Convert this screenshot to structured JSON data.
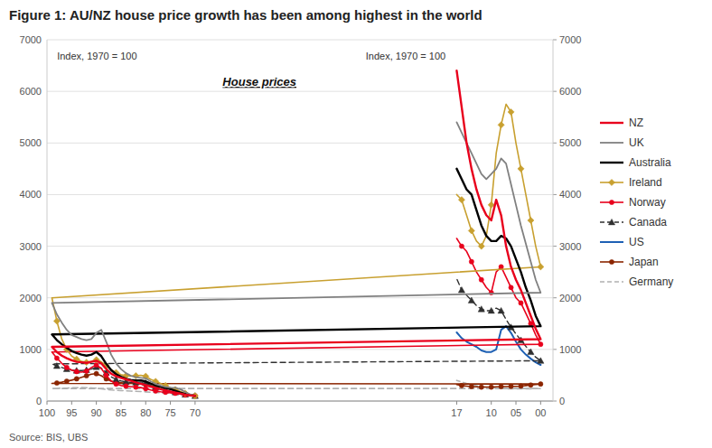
{
  "chart_data": {
    "type": "line",
    "title": "Figure 1: AU/NZ house price growth has been among highest in the world",
    "subtitle": "House prices",
    "y_label": "Index, 1970 = 100",
    "y2_label": "Index, 1970 = 100",
    "source": "Source: BIS, UBS",
    "xlim": [
      100,
      -2.5
    ],
    "xticks": [
      70,
      75,
      80,
      85,
      90,
      95,
      100,
      {
        "value": 0,
        "label": "00"
      },
      {
        "value": 5,
        "label": "05"
      },
      10,
      17
    ],
    "ylim": [
      0,
      7000
    ],
    "yticks": [
      0,
      1000,
      2000,
      3000,
      4000,
      5000,
      6000,
      7000
    ],
    "y2lim": [
      0,
      7000
    ],
    "y2ticks": [
      0,
      1000,
      2000,
      3000,
      4000,
      5000,
      6000,
      7000
    ],
    "grid": true,
    "legend": "right",
    "series": [
      {
        "name": "NZ",
        "color": "#e8001c",
        "line_style": "solid",
        "x": [
          70,
          71,
          72,
          73,
          74,
          75,
          76,
          77,
          78,
          79,
          80,
          81,
          82,
          83,
          84,
          85,
          86,
          87,
          88,
          89,
          90,
          91,
          92,
          93,
          94,
          95,
          96,
          97,
          98,
          99,
          0,
          1,
          2,
          3,
          4,
          5,
          6,
          7,
          8,
          9,
          10,
          11,
          12,
          13,
          14,
          15,
          16,
          17
        ],
        "values": [
          100,
          110,
          125,
          145,
          165,
          185,
          205,
          230,
          255,
          280,
          310,
          335,
          360,
          390,
          420,
          450,
          480,
          530,
          620,
          730,
          780,
          760,
          740,
          750,
          760,
          790,
          830,
          880,
          950,
          1050,
          1200,
          1400,
          1650,
          1900,
          2150,
          2350,
          2600,
          3000,
          3600,
          3900,
          3500,
          3600,
          3800,
          4100,
          4500,
          5000,
          5700,
          6400
        ]
      },
      {
        "name": "UK",
        "color": "#808080",
        "line_style": "solid",
        "x": [
          70,
          71,
          72,
          73,
          74,
          75,
          76,
          77,
          78,
          79,
          80,
          81,
          82,
          83,
          84,
          85,
          86,
          87,
          88,
          89,
          90,
          91,
          92,
          93,
          94,
          95,
          96,
          97,
          98,
          99,
          0,
          1,
          2,
          3,
          4,
          5,
          6,
          7,
          8,
          9,
          10,
          11,
          12,
          13,
          14,
          15,
          16,
          17
        ],
        "values": [
          100,
          130,
          175,
          230,
          255,
          260,
          275,
          300,
          330,
          380,
          440,
          450,
          460,
          490,
          540,
          620,
          730,
          900,
          1150,
          1380,
          1320,
          1200,
          1180,
          1200,
          1240,
          1280,
          1380,
          1520,
          1680,
          1900,
          2100,
          2350,
          2700,
          3050,
          3400,
          3800,
          4200,
          4600,
          4700,
          4500,
          4400,
          4300,
          4400,
          4600,
          4800,
          5000,
          5200,
          5400
        ]
      },
      {
        "name": "Australia",
        "color": "#000000",
        "line_style": "solid",
        "x": [
          70,
          71,
          72,
          73,
          74,
          75,
          76,
          77,
          78,
          79,
          80,
          81,
          82,
          83,
          84,
          85,
          86,
          87,
          88,
          89,
          90,
          91,
          92,
          93,
          94,
          95,
          96,
          97,
          98,
          99,
          0,
          1,
          2,
          3,
          4,
          5,
          6,
          7,
          8,
          9,
          10,
          11,
          12,
          13,
          14,
          15,
          16,
          17
        ],
        "values": [
          100,
          115,
          135,
          165,
          200,
          230,
          255,
          280,
          310,
          340,
          380,
          400,
          400,
          410,
          430,
          470,
          520,
          600,
          720,
          870,
          950,
          900,
          880,
          900,
          930,
          970,
          1030,
          1100,
          1180,
          1290,
          1450,
          1650,
          1950,
          2200,
          2500,
          2750,
          3000,
          3150,
          3200,
          3100,
          3100,
          3200,
          3400,
          3700,
          4000,
          4100,
          4300,
          4500
        ]
      },
      {
        "name": "Ireland",
        "color": "#c8a030",
        "line_style": "solid",
        "marker": "diamond",
        "x": [
          70,
          71,
          72,
          73,
          74,
          75,
          76,
          77,
          78,
          79,
          80,
          81,
          82,
          83,
          84,
          85,
          86,
          87,
          88,
          89,
          90,
          91,
          92,
          93,
          94,
          95,
          96,
          97,
          98,
          99,
          0,
          1,
          2,
          3,
          4,
          5,
          6,
          7,
          8,
          9,
          10,
          11,
          12,
          13,
          14,
          15,
          16,
          17
        ],
        "values": [
          100,
          120,
          150,
          185,
          220,
          260,
          300,
          340,
          380,
          420,
          480,
          500,
          490,
          480,
          490,
          510,
          550,
          610,
          680,
          760,
          800,
          770,
          750,
          770,
          810,
          870,
          1000,
          1200,
          1550,
          2000,
          2600,
          3000,
          3500,
          4000,
          4500,
          5000,
          5600,
          5750,
          5350,
          4800,
          3800,
          3200,
          3000,
          3100,
          3300,
          3600,
          3900,
          4000
        ]
      },
      {
        "name": "Norway",
        "color": "#e8001c",
        "line_style": "solid",
        "marker": "circle",
        "x": [
          70,
          71,
          72,
          73,
          74,
          75,
          76,
          77,
          78,
          79,
          80,
          81,
          82,
          83,
          84,
          85,
          86,
          87,
          88,
          89,
          90,
          91,
          92,
          93,
          94,
          95,
          96,
          97,
          98,
          99,
          0,
          1,
          2,
          3,
          4,
          5,
          6,
          7,
          8,
          9,
          10,
          11,
          12,
          13,
          14,
          15,
          16,
          17
        ],
        "values": [
          100,
          110,
          120,
          135,
          150,
          160,
          170,
          180,
          195,
          215,
          240,
          260,
          270,
          280,
          290,
          300,
          330,
          390,
          500,
          630,
          700,
          650,
          580,
          560,
          570,
          600,
          650,
          730,
          830,
          950,
          1100,
          1280,
          1500,
          1700,
          1900,
          2000,
          2200,
          2400,
          2600,
          2500,
          2100,
          2200,
          2350,
          2500,
          2700,
          2900,
          3000,
          3150
        ]
      },
      {
        "name": "Canada",
        "color": "#303030",
        "line_style": "dashed",
        "marker": "triangle",
        "x": [
          70,
          71,
          72,
          73,
          74,
          75,
          76,
          77,
          78,
          79,
          80,
          81,
          82,
          83,
          84,
          85,
          86,
          87,
          88,
          89,
          90,
          91,
          92,
          93,
          94,
          95,
          96,
          97,
          98,
          99,
          0,
          1,
          2,
          3,
          4,
          5,
          6,
          7,
          8,
          9,
          10,
          11,
          12,
          13,
          14,
          15,
          16,
          17
        ],
        "values": [
          100,
          110,
          125,
          145,
          170,
          190,
          210,
          235,
          265,
          300,
          350,
          370,
          360,
          360,
          370,
          390,
          420,
          470,
          550,
          640,
          660,
          620,
          600,
          590,
          590,
          600,
          620,
          650,
          680,
          720,
          780,
          850,
          950,
          1060,
          1180,
          1300,
          1430,
          1580,
          1750,
          1800,
          1750,
          1750,
          1780,
          1850,
          1950,
          2050,
          2150,
          2370
        ]
      },
      {
        "name": "US",
        "color": "#1e60b4",
        "line_style": "solid",
        "x": [
          0,
          1,
          2,
          3,
          4,
          5,
          6,
          7,
          8,
          9,
          10,
          11,
          12,
          13,
          14,
          15,
          16,
          17
        ],
        "values": [
          700,
          750,
          820,
          900,
          1000,
          1150,
          1320,
          1450,
          1380,
          1000,
          950,
          950,
          980,
          1050,
          1100,
          1150,
          1220,
          1330
        ]
      },
      {
        "name": "Japan",
        "color": "#8b2500",
        "line_style": "solid",
        "marker": "circle",
        "x": [
          70,
          71,
          72,
          73,
          74,
          75,
          76,
          77,
          78,
          79,
          80,
          81,
          82,
          83,
          84,
          85,
          86,
          87,
          88,
          89,
          90,
          91,
          92,
          93,
          94,
          95,
          96,
          97,
          98,
          99,
          0,
          1,
          2,
          3,
          4,
          5,
          6,
          7,
          8,
          9,
          10,
          11,
          12,
          13,
          14,
          15,
          16,
          17
        ],
        "values": [
          100,
          115,
          140,
          180,
          220,
          240,
          255,
          270,
          285,
          300,
          320,
          330,
          335,
          340,
          345,
          355,
          365,
          385,
          430,
          490,
          530,
          520,
          490,
          460,
          430,
          405,
          385,
          365,
          350,
          340,
          330,
          320,
          310,
          300,
          290,
          285,
          285,
          280,
          280,
          275,
          270,
          270,
          270,
          275,
          280,
          290,
          300,
          320
        ]
      },
      {
        "name": "Germany",
        "color": "#b0b0b0",
        "line_style": "dashed",
        "x": [
          70,
          71,
          72,
          73,
          74,
          75,
          76,
          77,
          78,
          79,
          80,
          81,
          82,
          83,
          84,
          85,
          86,
          87,
          88,
          89,
          90,
          91,
          92,
          93,
          94,
          95,
          96,
          97,
          98,
          99,
          0,
          1,
          2,
          3,
          4,
          5,
          6,
          7,
          8,
          9,
          10,
          11,
          12,
          13,
          14,
          15,
          16,
          17
        ],
        "values": [
          100,
          110,
          120,
          130,
          140,
          148,
          155,
          160,
          165,
          170,
          177,
          183,
          188,
          192,
          197,
          202,
          208,
          215,
          225,
          235,
          248,
          255,
          258,
          260,
          258,
          255,
          250,
          248,
          245,
          243,
          242,
          240,
          238,
          237,
          236,
          235,
          237,
          240,
          248,
          255,
          260,
          268,
          278,
          295,
          315,
          340,
          370,
          400
        ]
      }
    ]
  }
}
